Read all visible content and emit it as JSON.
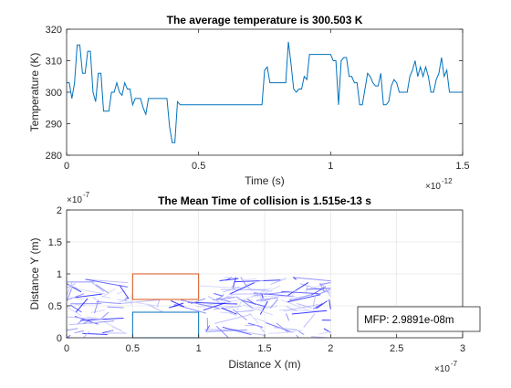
{
  "chart_data": [
    {
      "type": "line",
      "title": "The average temperature is 300.503 K",
      "xlabel": "Time (s)",
      "ylabel": "Temperature (K)",
      "xlim": [
        0,
        1.5
      ],
      "ylim": [
        280,
        320
      ],
      "x_exponent_label": "×10",
      "x_exponent_power": "-12",
      "x_ticks": [
        "0",
        "0.5",
        "1",
        "1.5"
      ],
      "y_ticks": [
        "280",
        "290",
        "300",
        "310",
        "320"
      ],
      "grid": false,
      "color": "#0072BD",
      "x_unit_scale": 1e-12,
      "series": [
        {
          "x": [
            0,
            0.01,
            0.02,
            0.03,
            0.04,
            0.05,
            0.06,
            0.07,
            0.08,
            0.09,
            0.1,
            0.11,
            0.12,
            0.13,
            0.14,
            0.15,
            0.16,
            0.17,
            0.18,
            0.19,
            0.2,
            0.21,
            0.22,
            0.23,
            0.24,
            0.25,
            0.26,
            0.27,
            0.28,
            0.29,
            0.3,
            0.31,
            0.32,
            0.33,
            0.34,
            0.35,
            0.36,
            0.37,
            0.38,
            0.39,
            0.4,
            0.41,
            0.42,
            0.43,
            0.44,
            0.45,
            0.46,
            0.47,
            0.48,
            0.49,
            0.5,
            0.51,
            0.52,
            0.53,
            0.54,
            0.55,
            0.56,
            0.57,
            0.58,
            0.59,
            0.6,
            0.61,
            0.62,
            0.63,
            0.64,
            0.65,
            0.66,
            0.67,
            0.68,
            0.69,
            0.7,
            0.71,
            0.72,
            0.73,
            0.74,
            0.75,
            0.76,
            0.77,
            0.78,
            0.79,
            0.8,
            0.81,
            0.82,
            0.83,
            0.84,
            0.85,
            0.86,
            0.87,
            0.88,
            0.89,
            0.9,
            0.91,
            0.92,
            0.93,
            0.94,
            0.95,
            0.96,
            0.97,
            0.98,
            0.99,
            1.0,
            1.01,
            1.02,
            1.03,
            1.04,
            1.05,
            1.06,
            1.07,
            1.08,
            1.09,
            1.1,
            1.11,
            1.12,
            1.13,
            1.14,
            1.15,
            1.16,
            1.17,
            1.18,
            1.19,
            1.2,
            1.21,
            1.22,
            1.23,
            1.24,
            1.25,
            1.26,
            1.27,
            1.28,
            1.29,
            1.3,
            1.31,
            1.32,
            1.33,
            1.34,
            1.35,
            1.36,
            1.37,
            1.38,
            1.39,
            1.4,
            1.41,
            1.42,
            1.43,
            1.44,
            1.45,
            1.46,
            1.47,
            1.48,
            1.49,
            1.5
          ],
          "y": [
            303,
            303,
            298,
            303,
            315,
            315,
            306,
            306,
            313,
            313,
            300,
            297,
            306,
            306,
            294,
            294,
            294,
            300,
            300,
            303,
            300,
            299,
            303,
            301,
            301,
            296,
            298,
            298,
            298,
            295,
            293,
            298,
            298,
            298,
            298,
            298,
            298,
            298,
            298,
            289,
            284,
            284,
            297,
            296,
            296,
            296,
            296,
            296,
            296,
            296,
            296,
            296,
            296,
            296,
            296,
            296,
            296,
            296,
            296,
            296,
            296,
            296,
            296,
            296,
            296,
            296,
            296,
            296,
            296,
            296,
            296,
            296,
            296,
            296,
            296,
            307,
            308,
            303,
            303,
            303,
            303,
            303,
            303,
            303,
            316,
            309,
            301,
            300,
            301,
            301,
            305,
            304,
            312,
            312,
            312,
            312,
            312,
            312,
            312,
            312,
            312,
            310,
            310,
            296,
            310,
            311,
            311,
            305,
            305,
            303,
            303,
            296,
            296,
            301,
            306,
            305,
            303,
            302,
            302,
            306,
            296,
            296,
            297,
            302,
            304,
            303,
            300,
            300,
            300,
            300,
            305,
            307,
            310,
            305,
            308,
            305,
            308,
            305,
            300,
            300,
            304,
            306,
            311,
            305,
            307,
            300,
            300,
            300,
            300,
            300,
            300
          ]
        }
      ]
    },
    {
      "type": "scatter",
      "title": "The Mean Time of collision is 1.515e-13 s",
      "xlabel": "Distance X (m)",
      "ylabel": "Distance Y (m)",
      "xlim": [
        0,
        3
      ],
      "ylim": [
        0,
        2
      ],
      "axis_exponent_label": "×10",
      "axis_exponent_power": "-7",
      "x_ticks": [
        "0",
        "0.5",
        "1",
        "1.5",
        "2",
        "2.5",
        "3"
      ],
      "y_ticks": [
        "0",
        "0.5",
        "1",
        "1.5",
        "2"
      ],
      "grid": true,
      "annotation": "MFP: 2.9891e-08m",
      "boxes": [
        {
          "x": [
            0.5,
            1.0
          ],
          "y": [
            0.6,
            1.0
          ],
          "color": "#D95319"
        },
        {
          "x": [
            0.5,
            1.0
          ],
          "y": [
            0.0,
            0.4
          ],
          "color": "#0072BD"
        }
      ],
      "trajectory_colors": [
        "#1a1aff",
        "#4d4dff",
        "#8080ff",
        "#b3b3ff",
        "#d0d0ff"
      ],
      "trajectory_note": "particle paths"
    }
  ]
}
